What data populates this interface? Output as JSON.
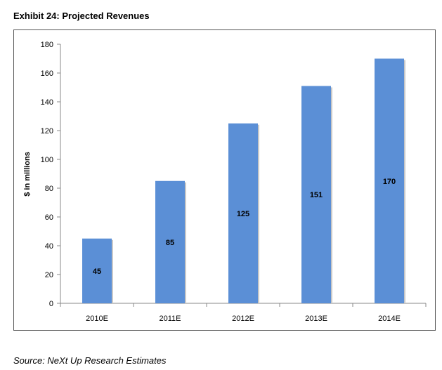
{
  "title": "Exhibit 24: Projected Revenues",
  "source": "Source: NeXt Up Research Estimates",
  "colors": {
    "bar": "#5B8FD6",
    "shadow": "#c8c8c8"
  },
  "chart_data": {
    "type": "bar",
    "title": "Exhibit 24: Projected Revenues",
    "xlabel": "",
    "ylabel": "$ in millions",
    "categories": [
      "2010E",
      "2011E",
      "2012E",
      "2013E",
      "2014E"
    ],
    "values": [
      45,
      85,
      125,
      151,
      170
    ],
    "data_labels": [
      "45",
      "85",
      "125",
      "151",
      "170"
    ],
    "ylim": [
      0,
      180
    ],
    "yticks": [
      0,
      20,
      40,
      60,
      80,
      100,
      120,
      140,
      160,
      180
    ],
    "grid": false,
    "legend": "none"
  }
}
